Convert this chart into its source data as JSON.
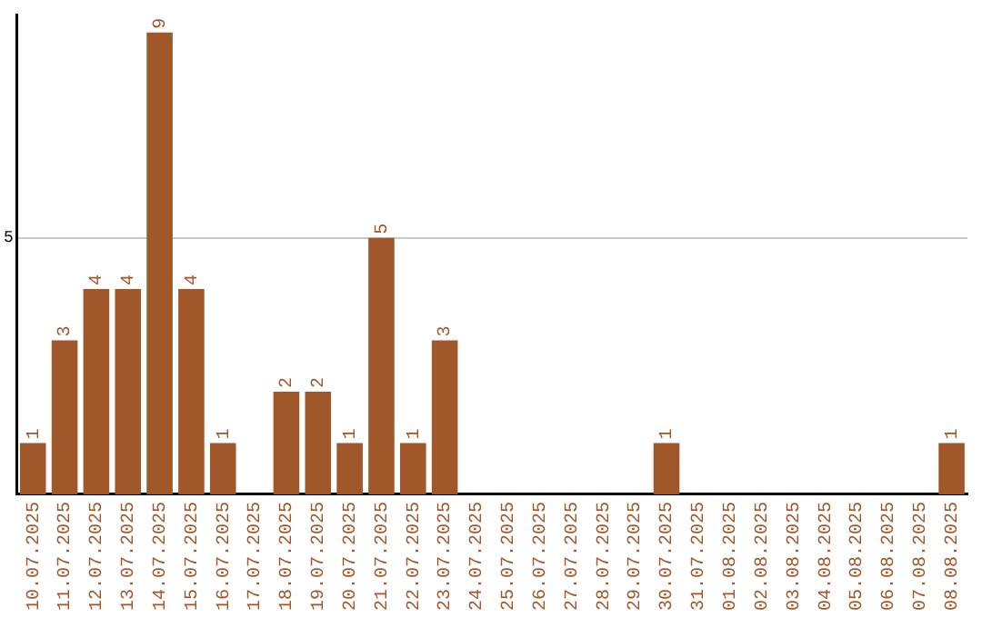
{
  "chart_data": {
    "type": "bar",
    "categories": [
      "10.07.2025",
      "11.07.2025",
      "12.07.2025",
      "13.07.2025",
      "14.07.2025",
      "15.07.2025",
      "16.07.2025",
      "17.07.2025",
      "18.07.2025",
      "19.07.2025",
      "20.07.2025",
      "21.07.2025",
      "22.07.2025",
      "23.07.2025",
      "24.07.2025",
      "25.07.2025",
      "26.07.2025",
      "27.07.2025",
      "28.07.2025",
      "29.07.2025",
      "30.07.2025",
      "31.07.2025",
      "01.08.2025",
      "02.08.2025",
      "03.08.2025",
      "04.08.2025",
      "05.08.2025",
      "06.08.2025",
      "07.08.2025",
      "08.08.2025"
    ],
    "values": [
      1,
      3,
      4,
      4,
      9,
      4,
      1,
      0,
      2,
      2,
      1,
      5,
      1,
      3,
      0,
      0,
      0,
      0,
      0,
      0,
      1,
      0,
      0,
      0,
      0,
      0,
      0,
      0,
      0,
      1
    ],
    "value_labels": [
      "1",
      "3",
      "4",
      "4",
      "9",
      "4",
      "1",
      null,
      "2",
      "2",
      "1",
      "5",
      "1",
      "3",
      null,
      null,
      null,
      null,
      null,
      null,
      "1",
      null,
      null,
      null,
      null,
      null,
      null,
      null,
      null,
      "1"
    ],
    "color": "#a0572a",
    "ylim": [
      0,
      9.35
    ],
    "yticks": [
      5
    ],
    "grid": "y"
  }
}
